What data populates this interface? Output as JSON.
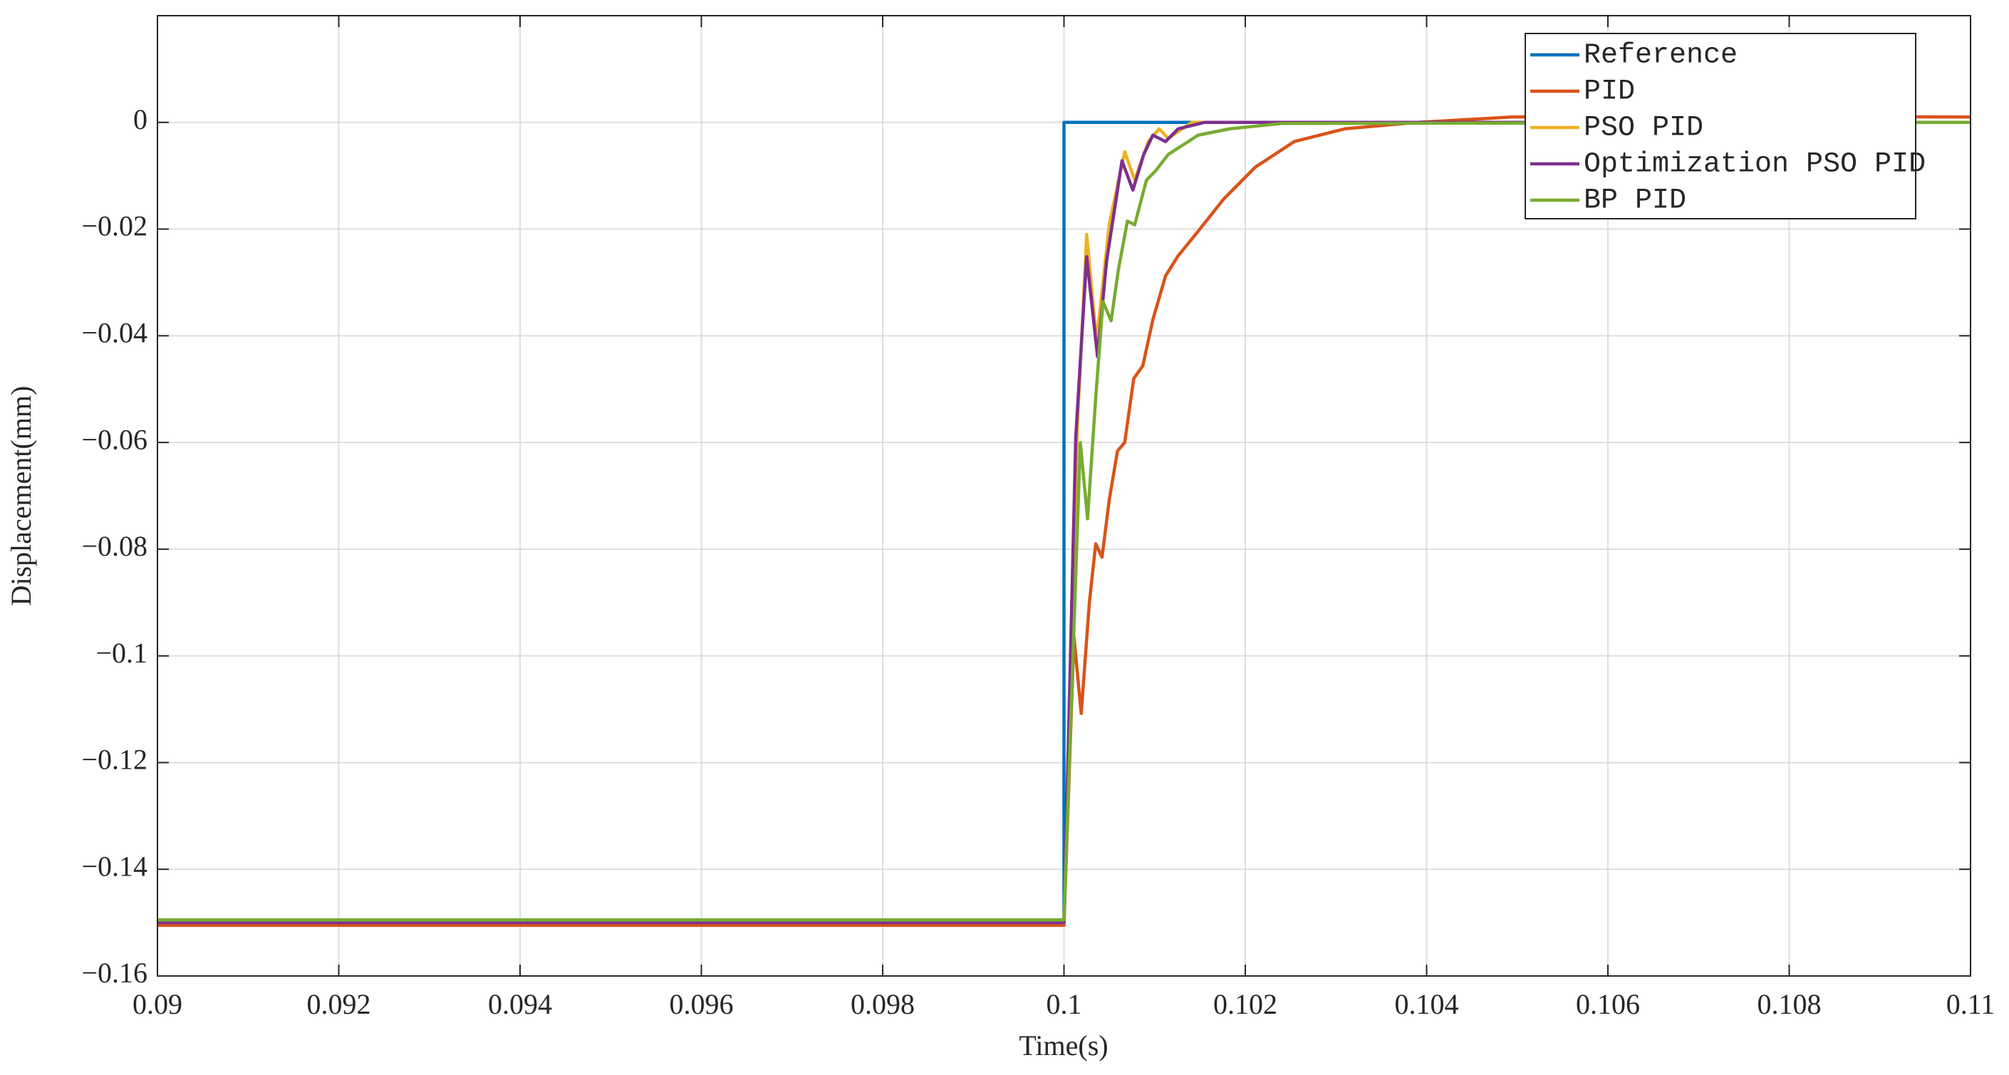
{
  "chart_data": {
    "type": "line",
    "x_label": "Time(s)",
    "y_label": "Displacement(mm)",
    "xlim": [
      0.09,
      0.11
    ],
    "xticks": [
      0.09,
      0.092,
      0.094,
      0.096,
      0.098,
      0.1,
      0.102,
      0.104,
      0.106,
      0.108,
      0.11
    ],
    "ylim": [
      -0.16,
      0.02
    ],
    "yticks": [
      {
        "value": -0.16,
        "label": "−0.16"
      },
      {
        "value": -0.14,
        "label": "−0.14"
      },
      {
        "value": -0.12,
        "label": "−0.12"
      },
      {
        "value": -0.1,
        "label": "−0.1"
      },
      {
        "value": -0.08,
        "label": "−0.08"
      },
      {
        "value": -0.06,
        "label": "−0.06"
      },
      {
        "value": -0.04,
        "label": "−0.04"
      },
      {
        "value": -0.02,
        "label": "−0.02"
      },
      0
    ],
    "grid": true,
    "legend": "upper right",
    "series": [
      {
        "name": "Reference",
        "color": "#0072BD",
        "x": [
          0.09,
          0.1,
          0.1,
          0.11
        ],
        "values": [
          -0.1495,
          -0.1495,
          0,
          0
        ]
      },
      {
        "name": "PID",
        "color": "#D95319",
        "x": [
          0.09,
          0.1,
          0.10011,
          0.10019,
          0.10028,
          0.10035,
          0.10042,
          0.1005,
          0.10059,
          0.10067,
          0.10077,
          0.10087,
          0.10098,
          0.10112,
          0.10126,
          0.10148,
          0.10176,
          0.10211,
          0.10254,
          0.1031,
          0.1039,
          0.10494,
          0.10664,
          0.11
        ],
        "values": [
          -0.1505,
          -0.1505,
          -0.0964,
          -0.1108,
          -0.09,
          -0.079,
          -0.0815,
          -0.0707,
          -0.0616,
          -0.06,
          -0.048,
          -0.0456,
          -0.037,
          -0.0288,
          -0.025,
          -0.0204,
          -0.0144,
          -0.0084,
          -0.0036,
          -0.0012,
          0,
          0.001,
          0.0012,
          0.001
        ]
      },
      {
        "name": "PSO PID",
        "color": "#EDB120",
        "x": [
          0.09,
          0.1,
          0.10015,
          0.10025,
          0.10036,
          0.1005,
          0.10067,
          0.10078,
          0.10093,
          0.10105,
          0.10115,
          0.10141,
          0.1024,
          0.11
        ],
        "values": [
          -0.15,
          -0.15,
          -0.056,
          -0.021,
          -0.041,
          -0.019,
          -0.0055,
          -0.0108,
          -0.0036,
          -0.0012,
          -0.003,
          0,
          0,
          0
        ]
      },
      {
        "name": "Optimization PSO PID",
        "color": "#7E2F8E",
        "x": [
          0.09,
          0.1,
          0.10013,
          0.10025,
          0.10037,
          0.10047,
          0.10064,
          0.10076,
          0.10088,
          0.10098,
          0.10112,
          0.10126,
          0.10155,
          0.11
        ],
        "values": [
          -0.15,
          -0.15,
          -0.059,
          -0.0252,
          -0.0439,
          -0.026,
          -0.0072,
          -0.0127,
          -0.006,
          -0.0024,
          -0.0036,
          -0.0012,
          0,
          0
        ]
      },
      {
        "name": "BP PID",
        "color": "#77AC30",
        "x": [
          0.09,
          0.1,
          0.10018,
          0.10026,
          0.10035,
          0.10043,
          0.10052,
          0.1006,
          0.1007,
          0.10078,
          0.10091,
          0.10101,
          0.10115,
          0.10126,
          0.10148,
          0.10183,
          0.1024,
          0.11
        ],
        "values": [
          -0.1495,
          -0.1495,
          -0.06,
          -0.0743,
          -0.0516,
          -0.0336,
          -0.0372,
          -0.0276,
          -0.0185,
          -0.0192,
          -0.0108,
          -0.0091,
          -0.006,
          -0.0048,
          -0.0024,
          -0.0012,
          -0.0002,
          0
        ]
      }
    ]
  }
}
